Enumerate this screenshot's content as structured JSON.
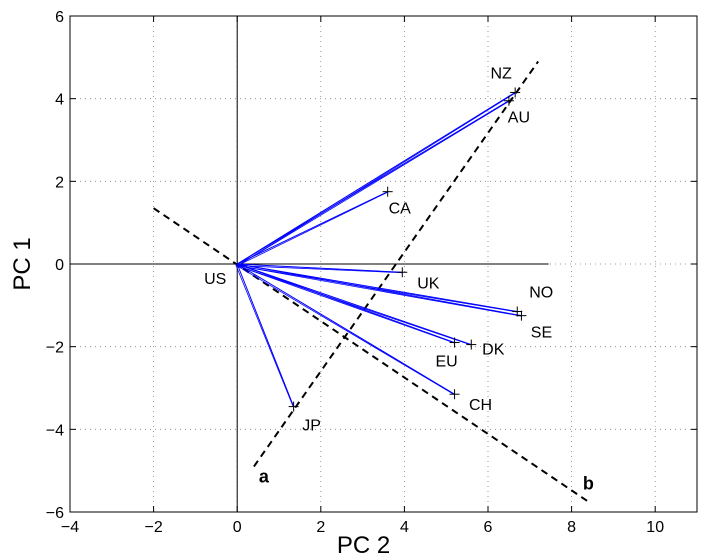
{
  "chart_data": {
    "type": "scatter",
    "xlabel": "PC 2",
    "ylabel": "PC 1",
    "xlim": [
      -4,
      11
    ],
    "ylim": [
      -6,
      6
    ],
    "xticks": [
      -4,
      -2,
      0,
      2,
      4,
      6,
      8,
      10
    ],
    "yticks": [
      -6,
      -4,
      -2,
      0,
      2,
      4,
      6
    ],
    "grid": true,
    "origin": {
      "label": "US",
      "x": 0,
      "y": 0
    },
    "points": [
      {
        "label": "NZ",
        "x": 6.65,
        "y": 4.15
      },
      {
        "label": "AU",
        "x": 6.5,
        "y": 3.95
      },
      {
        "label": "CA",
        "x": 3.6,
        "y": 1.75
      },
      {
        "label": "UK",
        "x": 3.95,
        "y": -0.2
      },
      {
        "label": "NO",
        "x": 6.7,
        "y": -1.15
      },
      {
        "label": "SE",
        "x": 6.8,
        "y": -1.25
      },
      {
        "label": "DK",
        "x": 5.6,
        "y": -1.95
      },
      {
        "label": "EU",
        "x": 5.2,
        "y": -1.9
      },
      {
        "label": "CH",
        "x": 5.2,
        "y": -3.15
      },
      {
        "label": "JP",
        "x": 1.35,
        "y": -3.45
      }
    ],
    "reference_lines": [
      {
        "label": "a",
        "from": [
          0.4,
          -4.9
        ],
        "to": [
          7.2,
          4.9
        ]
      },
      {
        "label": "b",
        "from": [
          -2,
          1.35
        ],
        "to": [
          8.4,
          -5.75
        ]
      }
    ],
    "colors": {
      "vectors": "#0000ff",
      "points": "#000000",
      "reference": "#000000",
      "grid": "#808080"
    }
  }
}
